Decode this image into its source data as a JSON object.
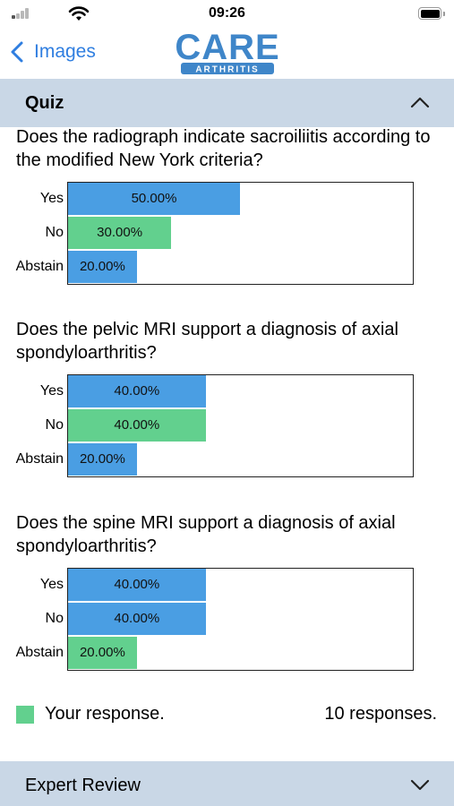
{
  "status": {
    "time": "09:26"
  },
  "nav": {
    "back_label": "Images",
    "logo_main": "CARE",
    "logo_sub": "ARTHRITIS"
  },
  "quiz": {
    "title": "Quiz",
    "questions": [
      {
        "text": "Does the radiograph indicate sacroiliitis according to the modified New York criteria?",
        "answers": [
          {
            "label": "Yes",
            "value": 50,
            "display": "50.00%",
            "color": "#4a9ee3"
          },
          {
            "label": "No",
            "value": 30,
            "display": "30.00%",
            "color": "#62d08e"
          },
          {
            "label": "Abstain",
            "value": 20,
            "display": "20.00%",
            "color": "#4a9ee3"
          }
        ]
      },
      {
        "text": "Does the pelvic MRI support a diagnosis of axial spondyloarthritis?",
        "answers": [
          {
            "label": "Yes",
            "value": 40,
            "display": "40.00%",
            "color": "#4a9ee3"
          },
          {
            "label": "No",
            "value": 40,
            "display": "40.00%",
            "color": "#62d08e"
          },
          {
            "label": "Abstain",
            "value": 20,
            "display": "20.00%",
            "color": "#4a9ee3"
          }
        ]
      },
      {
        "text": "Does the spine MRI support a diagnosis of axial spondyloarthritis?",
        "answers": [
          {
            "label": "Yes",
            "value": 40,
            "display": "40.00%",
            "color": "#4a9ee3"
          },
          {
            "label": "No",
            "value": 40,
            "display": "40.00%",
            "color": "#4a9ee3"
          },
          {
            "label": "Abstain",
            "value": 20,
            "display": "20.00%",
            "color": "#62d08e"
          }
        ]
      }
    ],
    "legend_label": "Your response.",
    "legend_color": "#62d08e",
    "responses_label": "10 responses."
  },
  "expert": {
    "title": "Expert Review"
  }
}
